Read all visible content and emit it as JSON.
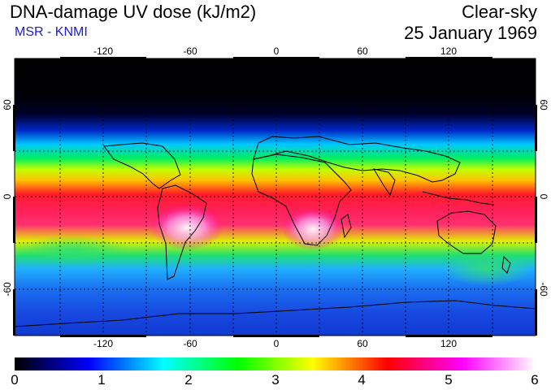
{
  "header": {
    "title": "DNA-damage UV dose (kJ/m2)",
    "subtitle": "MSR - KNMI",
    "mode": "Clear-sky",
    "date": "25 January 1969"
  },
  "map": {
    "longitude_ticks": [
      "-120",
      "-60",
      "0",
      "60",
      "120"
    ],
    "latitude_ticks": [
      "60",
      "0",
      "-60"
    ]
  },
  "colorbar": {
    "labels": [
      "0",
      "1",
      "2",
      "3",
      "4",
      "5",
      "6"
    ],
    "stops": [
      "#000000",
      "#0000ff",
      "#00ffff",
      "#00ff00",
      "#ffff00",
      "#ff0000",
      "#ff00ff",
      "#ffffff"
    ]
  }
}
